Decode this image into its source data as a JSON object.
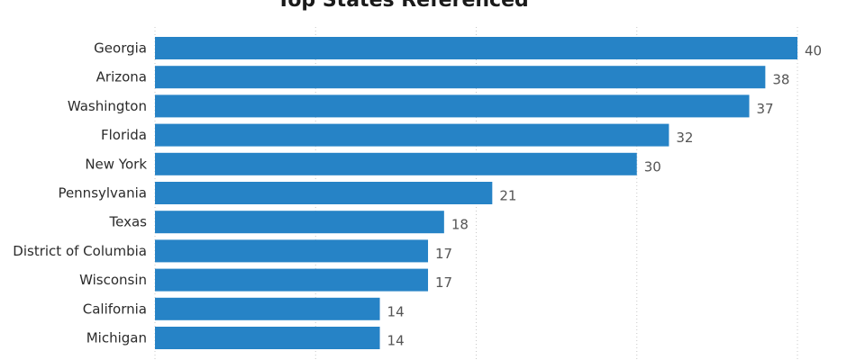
{
  "chart_data": {
    "type": "bar",
    "orientation": "horizontal",
    "title": "Top States Referenced",
    "categories": [
      "Georgia",
      "Arizona",
      "Washington",
      "Florida",
      "New York",
      "Pennsylvania",
      "Texas",
      "District of Columbia",
      "Wisconsin",
      "California",
      "Michigan"
    ],
    "values": [
      40,
      38,
      37,
      32,
      30,
      21,
      18,
      17,
      17,
      14,
      14
    ],
    "xlim": [
      0,
      40
    ],
    "grid": true,
    "data_labels": true
  },
  "colors": {
    "bar": "#2683c6",
    "inside_label": "#ffffff",
    "outside_label": "#555555",
    "grid": "#c8c8c8"
  }
}
